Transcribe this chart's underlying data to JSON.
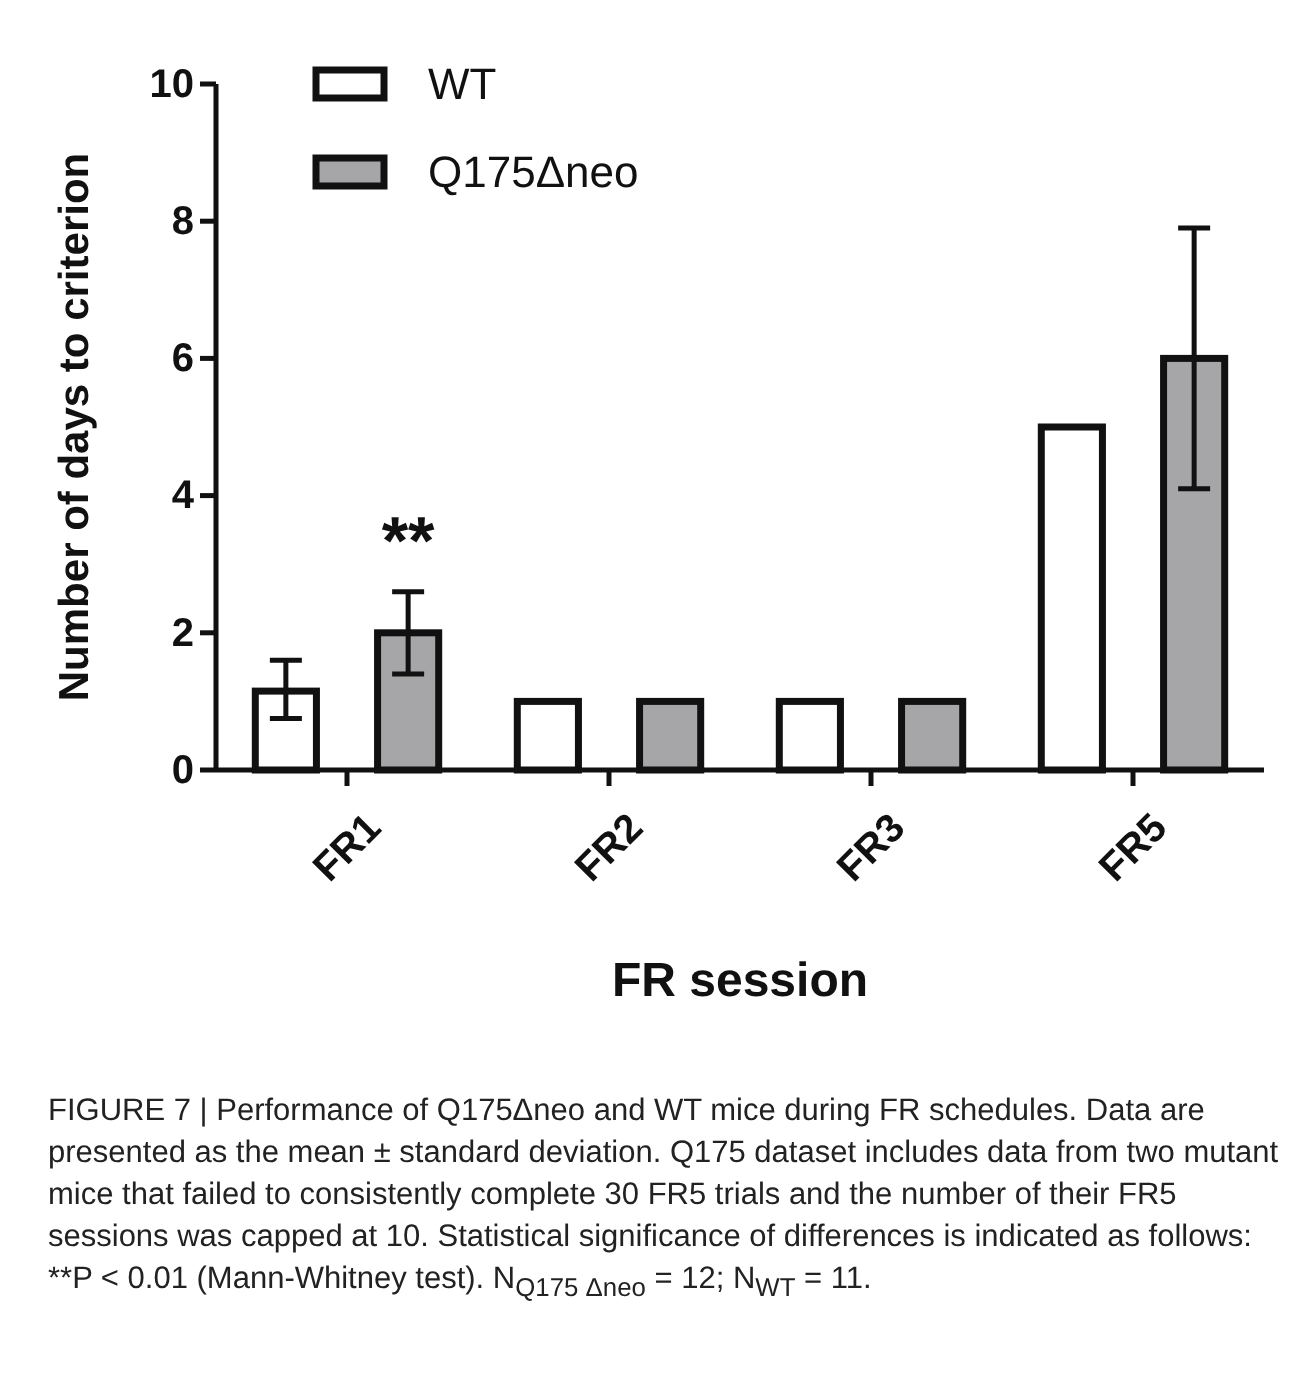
{
  "chart_data": {
    "type": "bar",
    "xlabel": "FR session",
    "ylabel": "Number of days to criterion",
    "categories": [
      "FR1",
      "FR2",
      "FR3",
      "FR5"
    ],
    "series": [
      {
        "name": "WT",
        "color": "#ffffff",
        "values": [
          1.15,
          1,
          1,
          5
        ],
        "errors": [
          [
            0.75,
            1.6
          ],
          null,
          null,
          null
        ]
      },
      {
        "name": "Q175Δneo",
        "color": "#a6a6a8",
        "values": [
          2,
          1,
          1,
          6
        ],
        "errors": [
          [
            1.4,
            2.6
          ],
          null,
          null,
          [
            4.1,
            7.9
          ]
        ]
      }
    ],
    "ylim": [
      0,
      10
    ],
    "yticks": [
      0,
      2,
      4,
      6,
      8,
      10
    ],
    "grid": false,
    "legend": "top left",
    "annotations": [
      "**",
      "FIGURE 7 | Performance of Q175Δneo and WT mice during FR schedules. Data are presented as the mean ± standard deviation. Q175 dataset includes data from two mutant mice that failed to consistently complete 30 FR5 trials and the number of their FR5 sessions was capped at 10. Statistical significance of differences is indicated as follows: **P < 0.01 (Mann-Whitney test). N$_{Q175 Δneo}$ = 12; N$_{WT}$ = 11."
    ]
  }
}
